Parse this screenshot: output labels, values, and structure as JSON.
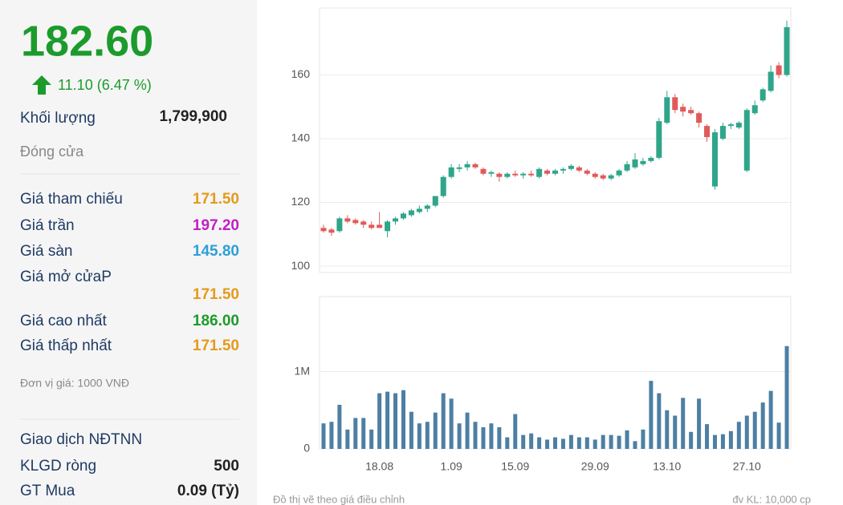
{
  "panel": {
    "price": "182.60",
    "change": "11.10 (6.47 %)",
    "volume_label": "Khối lượng",
    "volume": "1,799,900",
    "status": "Đóng cửa",
    "rows": [
      [
        "Giá tham chiếu",
        "171.50"
      ],
      [
        "Giá trần",
        "197.20"
      ],
      [
        "Giá sàn",
        "145.80"
      ],
      [
        "Giá mở cửaP",
        "171.50"
      ],
      [
        "Giá cao nhất",
        "186.00"
      ],
      [
        "Giá thấp nhất",
        "171.50"
      ]
    ],
    "unit_note": "Đơn vị giá: 1000 VNĐ",
    "foreign": {
      "title": "Giao dịch NĐTNN",
      "rows": [
        [
          "KLGD ròng",
          "500"
        ],
        [
          "GT Mua",
          "0.09 (Tỷ)"
        ]
      ]
    }
  },
  "footer": {
    "left": "Đồ thị vẽ theo giá điều chỉnh",
    "right": "đv KL: 10,000 cp"
  },
  "chart_data": [
    {
      "type": "candlestick",
      "up_color": "#2fa58a",
      "down_color": "#e05a5a",
      "grid": true,
      "ylim": [
        98,
        181
      ],
      "yticks": [
        100,
        120,
        140,
        160
      ],
      "open": [
        112,
        111.5,
        111,
        115,
        114.5,
        114,
        113,
        113,
        111,
        114,
        115,
        116,
        117,
        118,
        119,
        122,
        128,
        130.5,
        131,
        132,
        130.5,
        129,
        129,
        128,
        129,
        128.5,
        129,
        128,
        130,
        129,
        130,
        130.5,
        131,
        130,
        129,
        128.5,
        127.5,
        128.5,
        130,
        131,
        132,
        133,
        134,
        145,
        153,
        150,
        149,
        148,
        144,
        125,
        140,
        144,
        143.5,
        130,
        148,
        152,
        155,
        163,
        160
      ],
      "high": [
        113,
        112,
        115.5,
        116,
        115,
        114.5,
        114,
        117,
        114.5,
        115.5,
        117,
        118,
        119,
        119.5,
        122,
        128.5,
        132,
        132,
        133,
        132.5,
        131,
        130,
        129.5,
        129.5,
        130,
        129.5,
        130,
        131,
        130.5,
        130.5,
        131,
        132,
        131.5,
        130.5,
        129.5,
        129,
        129,
        130.5,
        133,
        135.5,
        134,
        134.5,
        146.5,
        155,
        154,
        151,
        150,
        148.5,
        144.5,
        143,
        145,
        145,
        145.5,
        149.5,
        152,
        156,
        163,
        164,
        177
      ],
      "low": [
        110.5,
        109.5,
        110.5,
        113.5,
        113,
        112,
        111.5,
        112,
        109,
        113,
        114.5,
        115.5,
        116.5,
        117,
        118.5,
        121.5,
        127.5,
        129.5,
        130,
        130.5,
        128.5,
        128,
        126.5,
        127.5,
        128,
        127.5,
        128,
        127.5,
        128.5,
        128.5,
        129,
        130,
        129.5,
        128.5,
        127.5,
        127,
        127,
        128,
        129.5,
        130.5,
        131.5,
        132.5,
        133.5,
        144.5,
        148,
        147,
        147.5,
        143.5,
        139,
        124,
        139.5,
        143,
        143,
        129.5,
        147.5,
        151.5,
        154.5,
        159,
        159.5
      ],
      "close": [
        111,
        110.5,
        115,
        114,
        113.5,
        113,
        112,
        112,
        114,
        115,
        116.5,
        117.5,
        118,
        119,
        122,
        128,
        131,
        131,
        132,
        131,
        129,
        129.5,
        128,
        129,
        128.5,
        129,
        128.5,
        130.5,
        129,
        130,
        130.5,
        131.5,
        130,
        129,
        128,
        127.5,
        128.5,
        130,
        132,
        133.5,
        133,
        134,
        145.5,
        153,
        149,
        148.5,
        148,
        145,
        140.5,
        142,
        144,
        144.5,
        145,
        149,
        150.5,
        155.5,
        161,
        160,
        175
      ]
    },
    {
      "type": "bar",
      "color": "#4d7fa3",
      "grid": true,
      "ylim": [
        0,
        1970000
      ],
      "yticks": [
        0,
        {
          "value": 1000000,
          "label": "1M"
        }
      ],
      "categories": [
        null,
        null,
        null,
        null,
        null,
        null,
        null,
        "18.08",
        null,
        null,
        null,
        null,
        null,
        null,
        null,
        null,
        "1.09",
        null,
        null,
        null,
        null,
        null,
        null,
        null,
        "15.09",
        null,
        null,
        null,
        null,
        null,
        null,
        null,
        null,
        null,
        "29.09",
        null,
        null,
        null,
        null,
        null,
        null,
        null,
        null,
        "13.10",
        null,
        null,
        null,
        null,
        null,
        null,
        null,
        null,
        null,
        "27.10",
        null,
        null,
        null,
        null,
        null
      ],
      "values": [
        330000,
        350000,
        570000,
        250000,
        400000,
        400000,
        250000,
        720000,
        740000,
        720000,
        760000,
        480000,
        330000,
        350000,
        470000,
        720000,
        650000,
        330000,
        470000,
        350000,
        280000,
        330000,
        280000,
        150000,
        450000,
        180000,
        200000,
        150000,
        120000,
        150000,
        130000,
        180000,
        150000,
        150000,
        120000,
        180000,
        180000,
        170000,
        240000,
        100000,
        250000,
        880000,
        720000,
        500000,
        430000,
        660000,
        220000,
        650000,
        320000,
        180000,
        190000,
        230000,
        350000,
        430000,
        480000,
        600000,
        750000,
        340000,
        1330000
      ]
    }
  ]
}
